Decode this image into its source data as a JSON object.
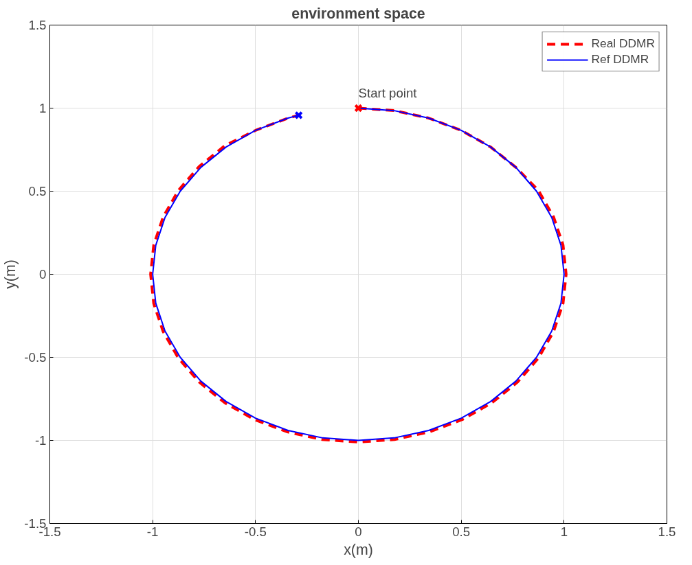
{
  "chart_data": {
    "type": "line",
    "title": "environment space",
    "xlabel": "x(m)",
    "ylabel": "y(m)",
    "xlim": [
      -1.5,
      1.5
    ],
    "ylim": [
      -1.5,
      1.5
    ],
    "xticks": [
      -1.5,
      -1,
      -0.5,
      0,
      0.5,
      1,
      1.5
    ],
    "yticks": [
      -1.5,
      -1,
      -0.5,
      0,
      0.5,
      1,
      1.5
    ],
    "grid": true,
    "legend": "top right",
    "annotations": [
      {
        "text": "Start point",
        "x": 0,
        "y": 1
      }
    ],
    "series": [
      {
        "name": "Real DDMR",
        "color": "#ff0000",
        "line_style": "dashed",
        "x": [
          0,
          0.174,
          0.342,
          0.5,
          0.643,
          0.766,
          0.875,
          0.949,
          0.995,
          1.01,
          0.995,
          0.949,
          0.875,
          0.774,
          0.649,
          0.505,
          0.345,
          0.176,
          0,
          -0.176,
          -0.345,
          -0.505,
          -0.649,
          -0.774,
          -0.875,
          -0.949,
          -0.995,
          -1.01,
          -0.995,
          -0.949,
          -0.875,
          -0.774,
          -0.649,
          -0.5,
          -0.342,
          -0.29
        ],
        "values": [
          1,
          0.985,
          0.94,
          0.866,
          0.766,
          0.643,
          0.505,
          0.345,
          0.176,
          0,
          -0.176,
          -0.345,
          -0.505,
          -0.649,
          -0.774,
          -0.875,
          -0.949,
          -0.995,
          -1.01,
          -0.995,
          -0.949,
          -0.875,
          -0.774,
          -0.649,
          -0.505,
          -0.345,
          -0.176,
          0,
          0.176,
          0.345,
          0.505,
          0.649,
          0.774,
          0.866,
          0.94,
          0.957
        ]
      },
      {
        "name": "Ref DDMR",
        "color": "#0000ff",
        "line_style": "solid",
        "x": [
          0,
          0.174,
          0.342,
          0.5,
          0.643,
          0.766,
          0.866,
          0.94,
          0.985,
          1,
          0.985,
          0.94,
          0.866,
          0.766,
          0.643,
          0.5,
          0.342,
          0.174,
          0,
          -0.174,
          -0.342,
          -0.5,
          -0.643,
          -0.766,
          -0.866,
          -0.94,
          -0.985,
          -1,
          -0.985,
          -0.94,
          -0.866,
          -0.766,
          -0.643,
          -0.5,
          -0.342,
          -0.29
        ],
        "values": [
          1,
          0.985,
          0.94,
          0.866,
          0.766,
          0.643,
          0.5,
          0.342,
          0.174,
          0,
          -0.174,
          -0.342,
          -0.5,
          -0.643,
          -0.766,
          -0.866,
          -0.94,
          -0.985,
          -1,
          -0.985,
          -0.94,
          -0.866,
          -0.766,
          -0.643,
          -0.5,
          -0.342,
          -0.174,
          0,
          0.174,
          0.342,
          0.5,
          0.643,
          0.766,
          0.866,
          0.94,
          0.957
        ]
      },
      {
        "color": "#ff0000",
        "type": "scatter",
        "marker": "cross",
        "x": [
          0
        ],
        "values": [
          1
        ]
      },
      {
        "color": "#0000ff",
        "type": "scatter",
        "marker": "cross",
        "x": [
          -0.29
        ],
        "values": [
          0.957
        ]
      }
    ]
  }
}
